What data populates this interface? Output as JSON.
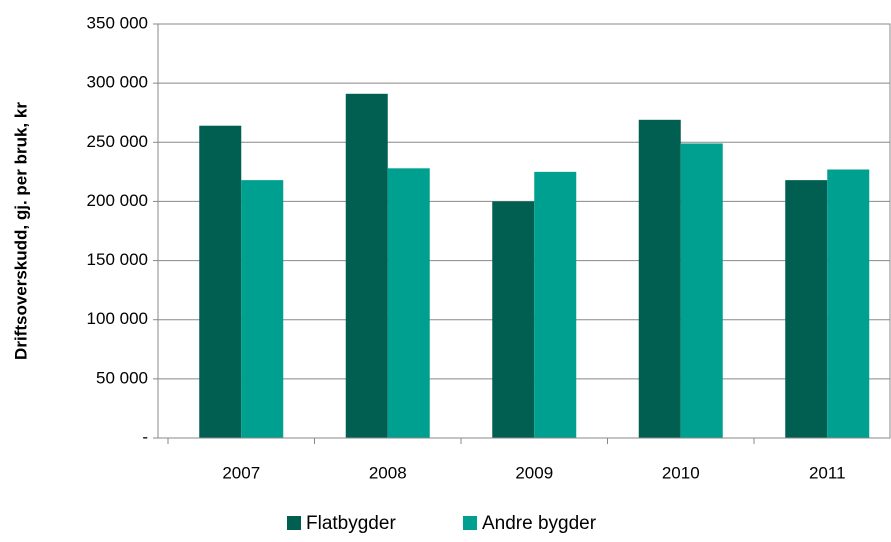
{
  "chart_data": {
    "type": "bar",
    "y_label": "Driftsoverskudd, gj. per bruk, kr",
    "categories": [
      "2007",
      "2008",
      "2009",
      "2010",
      "2011"
    ],
    "series": [
      {
        "name": "Flatbygder",
        "color": "#005f50",
        "values": [
          264000,
          291000,
          200000,
          269000,
          218000
        ]
      },
      {
        "name": "Andre bygder",
        "color": "#00a091",
        "values": [
          218000,
          228000,
          225000,
          249000,
          227000
        ]
      }
    ],
    "ylim": [
      0,
      350000
    ],
    "yticks": [
      {
        "value": 0,
        "label": "-"
      },
      {
        "value": 50000,
        "label": "50 000"
      },
      {
        "value": 100000,
        "label": "100 000"
      },
      {
        "value": 150000,
        "label": "150 000"
      },
      {
        "value": 200000,
        "label": "200 000"
      },
      {
        "value": 250000,
        "label": "250 000"
      },
      {
        "value": 300000,
        "label": "300 000"
      },
      {
        "value": 350000,
        "label": "350 000"
      }
    ],
    "grid": true,
    "legend": "bottom"
  }
}
